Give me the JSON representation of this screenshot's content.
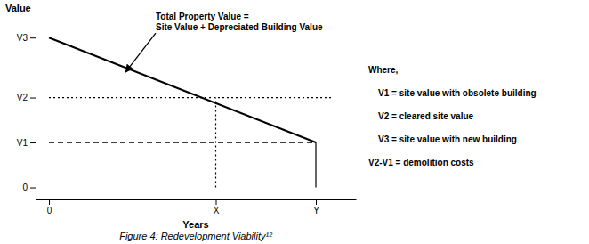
{
  "chart_data": {
    "type": "line",
    "title": "Figure 4: Redevelopment Viability¹²",
    "xlabel": "Years",
    "ylabel": "Value",
    "xlim": [
      -0.4,
      9.2
    ],
    "ylim": [
      -0.4,
      5.6
    ],
    "xticks": [
      0,
      {
        "value": 5,
        "label": "X"
      },
      {
        "value": 8,
        "label": "Y"
      }
    ],
    "yticks": [
      0,
      {
        "value": 1.5,
        "label": "V1"
      },
      {
        "value": 3.0,
        "label": "V2"
      },
      {
        "value": 5.0,
        "label": "V3"
      }
    ],
    "grid": false,
    "series": [
      {
        "x": [
          0,
          8
        ],
        "values": [
          5.0,
          1.5
        ],
        "color": "#000000",
        "line_style": "solid"
      },
      {
        "x": [
          0,
          8.5
        ],
        "values": [
          3.0,
          3.0
        ],
        "color": "#000000",
        "line_style": "dotted"
      },
      {
        "x": [
          0,
          8
        ],
        "values": [
          1.5,
          1.5
        ],
        "color": "#000000",
        "line_style": "dashed"
      },
      {
        "x": [
          5,
          5
        ],
        "values": [
          0,
          3.0
        ],
        "color": "#000000",
        "line_style": "dotted"
      },
      {
        "x": [
          8,
          8
        ],
        "values": [
          0,
          1.5
        ],
        "color": "#000000",
        "line_style": "solid"
      }
    ],
    "annotations": [
      {
        "text": "Total Property Value =\nSite Value + Depreciated Building Value",
        "xy": [
          2.3,
          3.85
        ],
        "xytext": [
          3.2,
          5.15
        ]
      }
    ],
    "notes": [
      "Where,",
      "    V1 = site value with obsolete building",
      "    V2 = cleared site value",
      "    V3 = site value with new building",
      "V2-V1 = demolition costs"
    ]
  }
}
